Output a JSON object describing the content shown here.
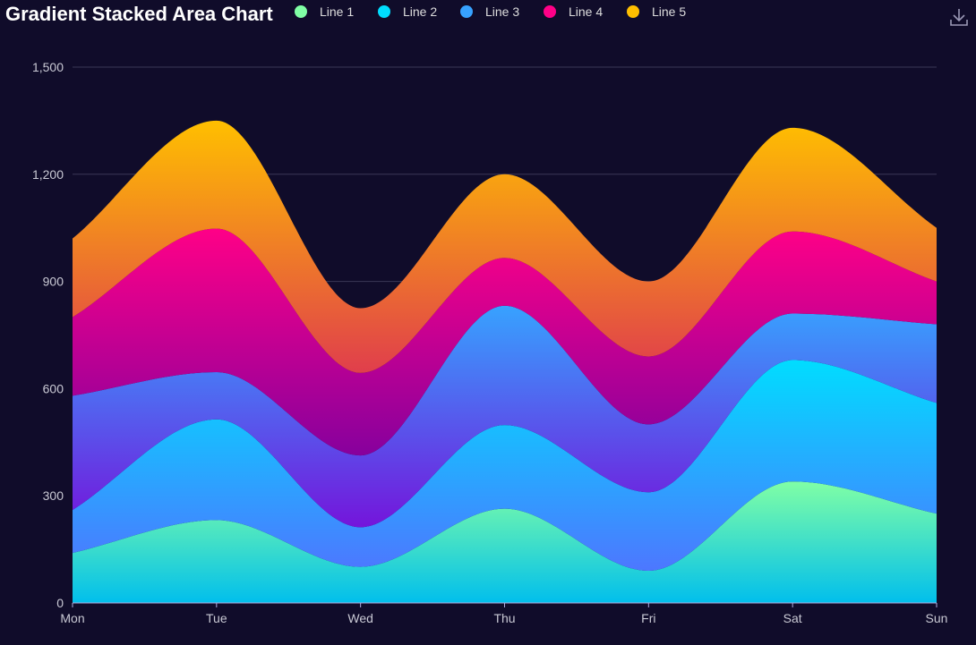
{
  "chart_data": {
    "type": "area",
    "title": "Gradient Stacked Area Chart",
    "stacked": true,
    "smooth": true,
    "categories": [
      "Mon",
      "Tue",
      "Wed",
      "Thu",
      "Fri",
      "Sat",
      "Sun"
    ],
    "ylim": [
      0,
      1500
    ],
    "yticks": [
      0,
      300,
      600,
      900,
      1200,
      1500
    ],
    "ytick_labels": [
      "0",
      "300",
      "600",
      "900",
      "1,200",
      "1,500"
    ],
    "grid": true,
    "legend_position": "top",
    "series": [
      {
        "name": "Line 1",
        "values": [
          140,
          232,
          101,
          264,
          90,
          340,
          250
        ],
        "legend_color": "#80ffa5",
        "gradient": [
          "#80ffa5",
          "#01bfec"
        ]
      },
      {
        "name": "Line 2",
        "values": [
          120,
          282,
          111,
          234,
          220,
          340,
          310
        ],
        "legend_color": "#00ddff",
        "gradient": [
          "#00ddff",
          "#4d77ff"
        ]
      },
      {
        "name": "Line 3",
        "values": [
          320,
          132,
          201,
          334,
          190,
          130,
          220
        ],
        "legend_color": "#37a2ff",
        "gradient": [
          "#37a2ff",
          "#7415db"
        ]
      },
      {
        "name": "Line 4",
        "values": [
          220,
          402,
          231,
          134,
          190,
          230,
          120
        ],
        "legend_color": "#ff0087",
        "gradient": [
          "#ff0087",
          "#87009d"
        ]
      },
      {
        "name": "Line 5",
        "values": [
          220,
          302,
          181,
          234,
          210,
          290,
          150
        ],
        "legend_color": "#ffbf00",
        "gradient": [
          "#ffbf00",
          "#e03e4c"
        ]
      }
    ]
  },
  "toolbox": {
    "icon": "download-icon"
  }
}
